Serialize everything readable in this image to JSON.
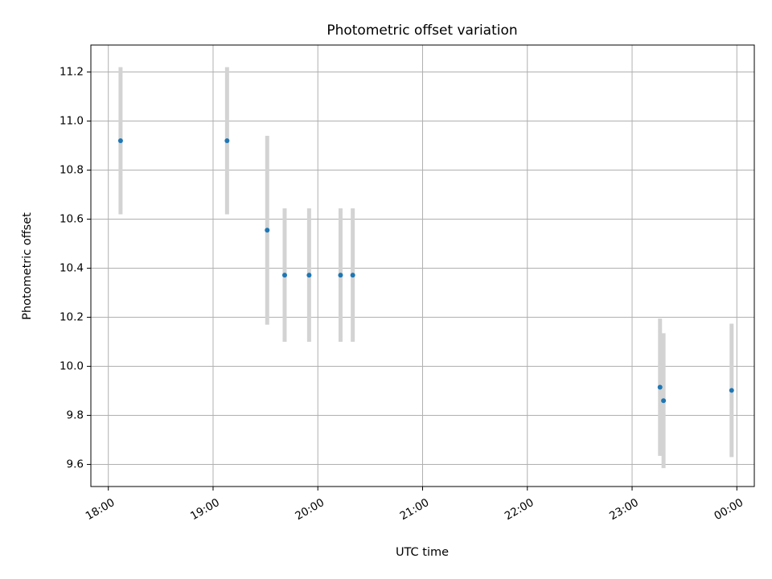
{
  "chart_data": {
    "type": "scatter",
    "title": "Photometric offset variation",
    "xlabel": "UTC time",
    "ylabel": "Photometric offset",
    "x_axis_type": "time",
    "xlim": [
      "17:50",
      "00:10"
    ],
    "ylim": [
      9.51,
      11.31
    ],
    "x_ticks": [
      "18:00",
      "19:00",
      "20:00",
      "21:00",
      "22:00",
      "23:00",
      "00:00"
    ],
    "y_ticks": [
      9.6,
      9.8,
      10.0,
      10.2,
      10.4,
      10.6,
      10.8,
      11.0,
      11.2
    ],
    "grid": true,
    "legend": "none",
    "marker_color": "#1f77b4",
    "errorbar_color": "#d3d3d3",
    "points": [
      {
        "x": "18:07",
        "y": 10.92,
        "err": 0.3
      },
      {
        "x": "19:08",
        "y": 10.92,
        "err": 0.3
      },
      {
        "x": "19:31",
        "y": 10.555,
        "err": 0.385
      },
      {
        "x": "19:41",
        "y": 10.372,
        "err": 0.272
      },
      {
        "x": "19:55",
        "y": 10.372,
        "err": 0.272
      },
      {
        "x": "20:13",
        "y": 10.372,
        "err": 0.272
      },
      {
        "x": "20:20",
        "y": 10.372,
        "err": 0.272
      },
      {
        "x": "23:16",
        "y": 9.915,
        "err": 0.28
      },
      {
        "x": "23:18",
        "y": 9.86,
        "err": 0.275
      },
      {
        "x": "23:57",
        "y": 9.902,
        "err": 0.272
      }
    ]
  }
}
